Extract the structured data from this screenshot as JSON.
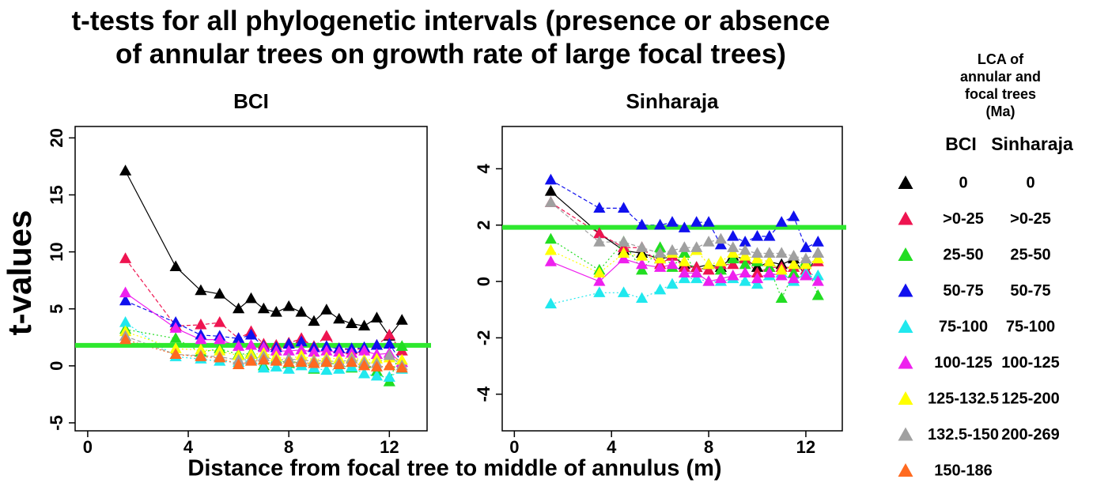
{
  "title": "t-tests for all phylogenetic intervals (presence or absence of annular trees on growth rate of large focal trees)",
  "xlabel": "Distance from focal tree to middle of annulus (m)",
  "ylabel": "t-values",
  "legend": {
    "title": "LCA of annular and focal trees (Ma)",
    "columns": [
      "BCI",
      "Sinharaja"
    ]
  },
  "chart_data": [
    {
      "type": "line",
      "title": "BCI",
      "x": [
        1.5,
        3.5,
        4.5,
        5.25,
        6,
        6.5,
        7,
        7.5,
        8,
        8.5,
        9,
        9.5,
        10,
        10.5,
        11,
        11.5,
        12,
        12.5
      ],
      "xlim": [
        -0.5,
        13.5
      ],
      "xticks": [
        0,
        4,
        8,
        12
      ],
      "ylim": [
        -5.7,
        21
      ],
      "yticks": [
        -5,
        0,
        5,
        10,
        15,
        20
      ],
      "hline": {
        "value": 1.8,
        "color": "#2ee82e"
      },
      "series": [
        {
          "name": "0",
          "color": "#000000",
          "linestyle": "solid",
          "values": [
            17.1,
            8.7,
            6.6,
            6.3,
            5.0,
            5.9,
            5.0,
            4.7,
            5.2,
            4.7,
            3.9,
            4.9,
            4.1,
            3.7,
            3.5,
            4.2,
            2.6,
            4.0
          ]
        },
        {
          "name": ">0-25",
          "color": "#ee1450",
          "linestyle": "dashed",
          "values": [
            9.4,
            3.5,
            3.6,
            3.8,
            2.4,
            3.0,
            1.9,
            1.8,
            2.0,
            2.4,
            1.7,
            2.6,
            1.5,
            1.4,
            1.5,
            1.8,
            2.7,
            1.3
          ]
        },
        {
          "name": "25-50",
          "color": "#22dd22",
          "linestyle": "dotted",
          "values": [
            3.2,
            2.4,
            1.2,
            1.5,
            1.0,
            1.1,
            0.0,
            0.6,
            0.2,
            0.5,
            -0.3,
            0.3,
            0.1,
            -0.2,
            0.2,
            -0.5,
            -1.4,
            1.7
          ]
        },
        {
          "name": "50-75",
          "color": "#1010ee",
          "linestyle": "dashed",
          "values": [
            5.7,
            3.8,
            2.7,
            2.6,
            2.4,
            2.7,
            1.7,
            1.6,
            1.9,
            2.1,
            1.6,
            1.7,
            1.5,
            1.5,
            1.6,
            1.8,
            1.9,
            0.3
          ]
        },
        {
          "name": "75-100",
          "color": "#20e8ee",
          "linestyle": "dotted",
          "values": [
            3.8,
            0.8,
            0.6,
            0.4,
            0.3,
            0.5,
            -0.2,
            -0.1,
            -0.3,
            0.0,
            -0.2,
            -0.4,
            -0.3,
            -0.1,
            -0.7,
            -0.9,
            -1.0,
            -0.3
          ]
        },
        {
          "name": "100-125",
          "color": "#ee20ee",
          "linestyle": "solid",
          "values": [
            6.4,
            3.3,
            2.3,
            2.3,
            1.7,
            1.8,
            1.6,
            1.3,
            1.3,
            1.4,
            1.2,
            1.3,
            1.2,
            1.1,
            1.3,
            1.0,
            1.1,
            0.3
          ]
        },
        {
          "name": "125-132.5",
          "color": "#ffff00",
          "linestyle": "dotted",
          "values": [
            3.0,
            1.5,
            1.4,
            1.3,
            0.9,
            1.0,
            1.1,
            0.8,
            0.6,
            0.9,
            0.5,
            0.7,
            0.6,
            0.7,
            0.5,
            0.6,
            0.7,
            0.5
          ]
        },
        {
          "name": "132.5-150",
          "color": "#a0a0a0",
          "linestyle": "dashed",
          "values": [
            2.6,
            1.0,
            0.9,
            0.8,
            0.5,
            0.6,
            0.8,
            0.5,
            0.6,
            0.5,
            0.4,
            0.5,
            0.3,
            0.6,
            0.3,
            0.2,
            0.9,
            0.0
          ]
        },
        {
          "name": "150-186",
          "color": "#ff6a20",
          "linestyle": "dotted",
          "values": [
            2.3,
            1.0,
            0.8,
            0.7,
            0.1,
            0.4,
            0.5,
            0.4,
            0.3,
            0.3,
            0.2,
            0.3,
            0.1,
            0.3,
            0.0,
            -0.1,
            0.0,
            -0.2
          ]
        }
      ]
    },
    {
      "type": "line",
      "title": "Sinharaja",
      "x": [
        1.5,
        3.5,
        4.5,
        5.25,
        6,
        6.5,
        7,
        7.5,
        8,
        8.5,
        9,
        9.5,
        10,
        10.5,
        11,
        11.5,
        12,
        12.5
      ],
      "xlim": [
        -0.5,
        13.5
      ],
      "xticks": [
        0,
        4,
        8,
        12
      ],
      "ylim": [
        -5.3,
        5.5
      ],
      "yticks": [
        -4,
        -2,
        0,
        2,
        4
      ],
      "hline": {
        "value": 1.92,
        "color": "#2ee82e"
      },
      "series": [
        {
          "name": "0",
          "color": "#000000",
          "linestyle": "solid",
          "values": [
            3.2,
            1.7,
            1.1,
            1.0,
            0.8,
            0.9,
            0.6,
            0.5,
            0.6,
            0.5,
            0.9,
            0.8,
            0.5,
            0.7,
            0.6,
            0.8,
            0.2,
            1.0
          ]
        },
        {
          "name": ">0-25",
          "color": "#ee1450",
          "linestyle": "dashed",
          "values": [
            2.8,
            1.7,
            1.2,
            1.2,
            0.6,
            0.9,
            0.5,
            0.5,
            0.4,
            0.6,
            0.6,
            0.8,
            0.3,
            0.5,
            0.5,
            0.5,
            0.4,
            0.7
          ]
        },
        {
          "name": "25-50",
          "color": "#22dd22",
          "linestyle": "dotted",
          "values": [
            1.5,
            0.4,
            1.4,
            0.4,
            1.2,
            0.5,
            1.0,
            0.3,
            0.6,
            0.4,
            0.8,
            0.6,
            0.7,
            0.5,
            -0.6,
            0.3,
            0.7,
            -0.5
          ]
        },
        {
          "name": "50-75",
          "color": "#1010ee",
          "linestyle": "dashed",
          "values": [
            3.6,
            2.6,
            2.6,
            2.0,
            2.0,
            2.1,
            1.9,
            2.1,
            2.1,
            1.3,
            1.6,
            1.4,
            1.6,
            1.6,
            2.1,
            2.3,
            1.2,
            1.4
          ]
        },
        {
          "name": "75-100",
          "color": "#20e8ee",
          "linestyle": "dotted",
          "values": [
            -0.8,
            -0.4,
            -0.4,
            -0.6,
            -0.3,
            -0.1,
            0.1,
            0.1,
            0.0,
            0.0,
            0.1,
            0.0,
            -0.1,
            0.2,
            0.3,
            0.0,
            0.3,
            0.2
          ]
        },
        {
          "name": "100-125",
          "color": "#ee20ee",
          "linestyle": "solid",
          "values": [
            0.7,
            0.0,
            0.8,
            0.6,
            0.5,
            0.6,
            0.3,
            0.3,
            0.0,
            0.1,
            0.2,
            0.3,
            0.1,
            0.3,
            0.2,
            0.1,
            0.2,
            0.0
          ]
        },
        {
          "name": "125-200",
          "color": "#ffff00",
          "linestyle": "dotted",
          "values": [
            1.1,
            0.3,
            1.0,
            0.9,
            0.8,
            1.0,
            0.7,
            1.1,
            0.6,
            0.7,
            1.0,
            0.9,
            0.8,
            0.7,
            0.4,
            0.6,
            0.6,
            0.8
          ]
        },
        {
          "name": "200-269",
          "color": "#a0a0a0",
          "linestyle": "dashed",
          "values": [
            2.8,
            1.4,
            1.4,
            1.2,
            1.0,
            1.1,
            1.2,
            1.2,
            1.4,
            1.5,
            1.2,
            1.1,
            1.0,
            1.0,
            1.0,
            0.9,
            0.8,
            1.0
          ]
        }
      ]
    }
  ]
}
